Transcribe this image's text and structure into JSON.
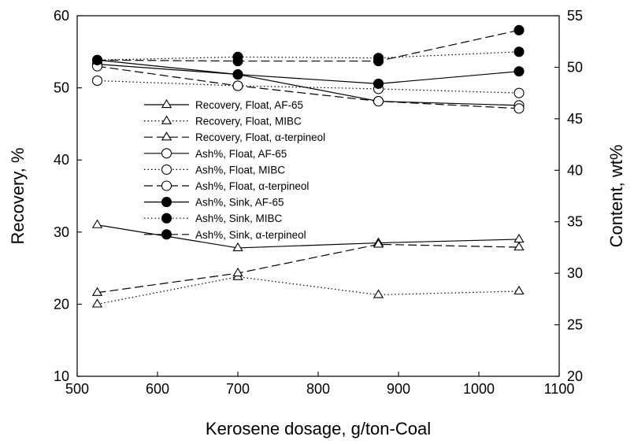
{
  "chart_data": {
    "type": "line",
    "title": "",
    "xlabel": "Kerosene dosage, g/ton-Coal",
    "ylabel_left": "Recovery, %",
    "ylabel_right": "Content, wt%",
    "xlim": [
      500,
      1100
    ],
    "ylim_left": [
      10,
      60
    ],
    "ylim_right": [
      20,
      55
    ],
    "x_ticks": [
      500,
      600,
      700,
      800,
      900,
      1000,
      1100
    ],
    "y_left_ticks": [
      10,
      20,
      30,
      40,
      50,
      60
    ],
    "y_right_ticks": [
      20,
      25,
      30,
      35,
      40,
      45,
      50,
      55
    ],
    "grid": false,
    "legend_position": "center-left",
    "x": [
      525,
      700,
      875,
      1050
    ],
    "series": [
      {
        "name": "Recovery, Float, AF-65",
        "axis": "left",
        "marker": "triangle-open",
        "line": "solid",
        "values": [
          31.0,
          27.8,
          28.5,
          29.0
        ]
      },
      {
        "name": "Recovery, Float, MIBC",
        "axis": "left",
        "marker": "triangle-open",
        "line": "dotted",
        "values": [
          20.0,
          23.8,
          21.3,
          21.8
        ]
      },
      {
        "name": "Recovery, Float, α-terpineol",
        "axis": "left",
        "marker": "triangle-open",
        "line": "dashed",
        "values": [
          21.6,
          24.3,
          28.3,
          27.9
        ]
      },
      {
        "name": "Ash%, Float, AF-65",
        "axis": "right",
        "marker": "circle-open",
        "line": "solid",
        "values": [
          50.3,
          49.3,
          46.7,
          46.3
        ]
      },
      {
        "name": "Ash%, Float, MIBC",
        "axis": "right",
        "marker": "circle-open",
        "line": "dotted",
        "values": [
          48.7,
          48.2,
          47.9,
          47.5
        ]
      },
      {
        "name": "Ash%, Float, α-terpineol",
        "axis": "right",
        "marker": "circle-open",
        "line": "dashed",
        "values": [
          50.1,
          48.2,
          46.7,
          46.0
        ]
      },
      {
        "name": "Ash%, Sink, AF-65",
        "axis": "right",
        "marker": "circle-filled",
        "line": "solid",
        "values": [
          50.7,
          49.3,
          48.4,
          49.6
        ]
      },
      {
        "name": "Ash%, Sink, MIBC",
        "axis": "right",
        "marker": "circle-filled",
        "line": "dotted",
        "values": [
          50.7,
          51.0,
          50.9,
          51.5
        ]
      },
      {
        "name": "Ash%, Sink, α-terpineol",
        "axis": "right",
        "marker": "circle-filled",
        "line": "dashed",
        "values": [
          50.7,
          50.6,
          50.6,
          53.6
        ]
      }
    ]
  }
}
